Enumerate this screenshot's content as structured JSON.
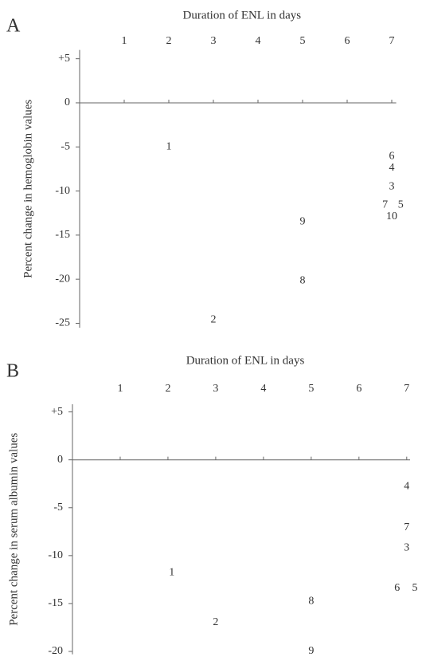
{
  "chart_data": [
    {
      "type": "scatter",
      "panel": "A",
      "title": "Duration of ENL in days",
      "y_label": "Percent change in hemoglobin values",
      "xlim": [
        0,
        7.1
      ],
      "xticks": [
        1,
        2,
        3,
        4,
        5,
        6,
        7
      ],
      "ylim": [
        -25.5,
        6
      ],
      "yticks": [
        {
          "value": 5,
          "label": "+5"
        },
        0,
        -5,
        -10,
        -15,
        -20,
        -25
      ],
      "point_labels": [
        1,
        6,
        4,
        3,
        7,
        5,
        10,
        9,
        8,
        2
      ],
      "x": [
        2,
        7,
        7,
        7,
        6.85,
        7.2,
        7,
        5,
        5,
        3
      ],
      "values": [
        -5,
        -6.1,
        -7.4,
        -9.5,
        -11.6,
        -11.6,
        -12.9,
        -13.5,
        -20.2,
        -24.6
      ]
    },
    {
      "type": "scatter",
      "panel": "B",
      "title": "Duration of ENL in days",
      "y_label": "Percent change in serum albumin values",
      "xlim": [
        0,
        7.07
      ],
      "xticks": [
        1,
        2,
        3,
        4,
        5,
        6,
        7
      ],
      "ylim": [
        -20.3,
        5.8
      ],
      "yticks": [
        {
          "value": 5,
          "label": "+5"
        },
        0,
        -5,
        -10,
        -15,
        -20
      ],
      "point_labels": [
        4,
        7,
        3,
        1,
        6,
        5,
        8,
        2,
        9
      ],
      "x": [
        7,
        7,
        7,
        2.08,
        6.8,
        7.17,
        5,
        3,
        5
      ],
      "values": [
        -2.8,
        -7.1,
        -9.2,
        -11.8,
        -13.4,
        -13.4,
        -14.8,
        -17,
        -20
      ]
    }
  ]
}
